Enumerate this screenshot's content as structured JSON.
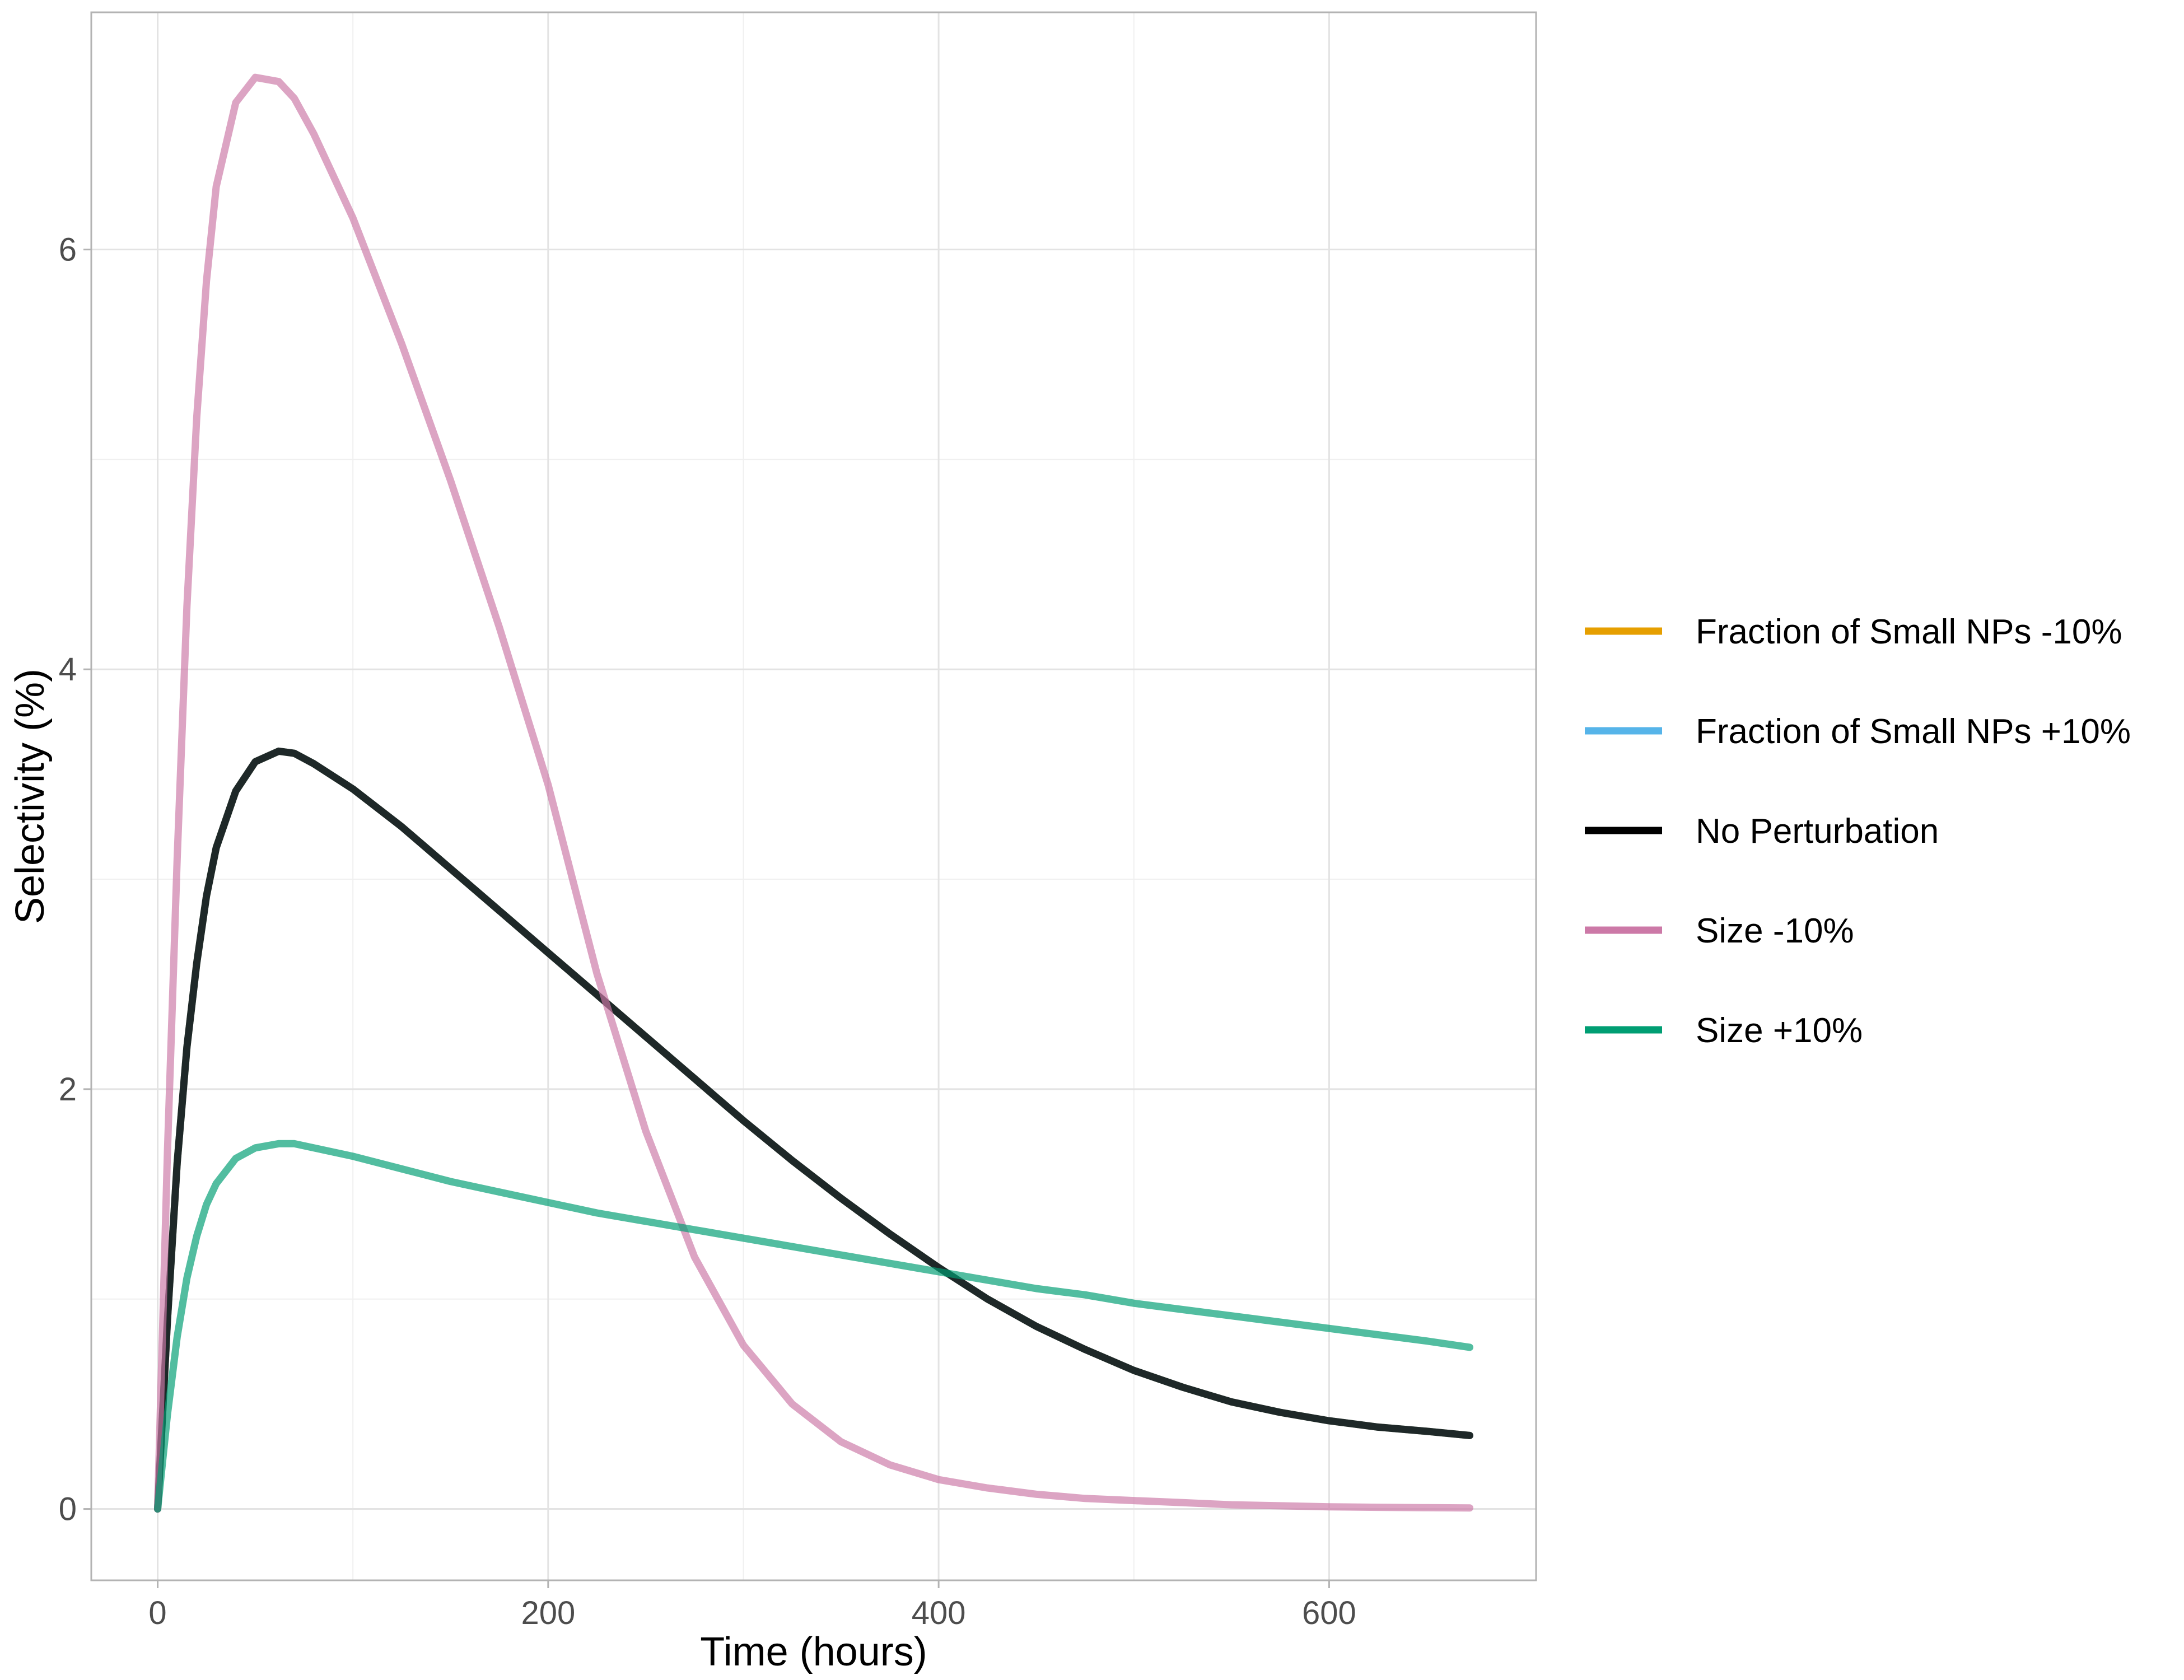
{
  "chart_data": {
    "type": "line",
    "title": "",
    "xlabel": "Time (hours)",
    "ylabel": "Selectivity (%)",
    "xlim": [
      -34,
      706
    ],
    "ylim": [
      -0.34,
      7.13
    ],
    "x_ticks": [
      0,
      200,
      400,
      600
    ],
    "x_tick_labels": [
      "0",
      "200",
      "400",
      "600"
    ],
    "y_ticks": [
      0,
      2,
      4,
      6
    ],
    "y_tick_labels": [
      "0",
      "2",
      "4",
      "6"
    ],
    "x_minor_ticks": [
      100,
      300,
      500
    ],
    "y_minor_ticks": [
      1,
      3,
      5
    ],
    "grid": true,
    "legend_position": "right",
    "x": [
      0,
      5,
      10,
      15,
      20,
      25,
      30,
      40,
      50,
      62,
      70,
      80,
      100,
      125,
      150,
      175,
      200,
      225,
      250,
      275,
      300,
      325,
      350,
      375,
      400,
      425,
      450,
      475,
      500,
      525,
      550,
      575,
      600,
      625,
      650,
      672
    ],
    "series": [
      {
        "name": "Fraction of Small NPs -10%",
        "color": "#E69F00",
        "values": [
          0,
          0.9,
          1.65,
          2.2,
          2.6,
          2.92,
          3.15,
          3.42,
          3.56,
          3.61,
          3.6,
          3.55,
          3.43,
          3.25,
          3.05,
          2.85,
          2.65,
          2.45,
          2.25,
          2.05,
          1.85,
          1.66,
          1.48,
          1.31,
          1.15,
          1.0,
          0.87,
          0.76,
          0.66,
          0.58,
          0.51,
          0.46,
          0.42,
          0.39,
          0.37,
          0.35
        ],
        "hidden_behind": "No Perturbation"
      },
      {
        "name": "Fraction of Small NPs +10%",
        "color": "#56B4E9",
        "values": [
          0,
          0.9,
          1.65,
          2.2,
          2.6,
          2.92,
          3.15,
          3.42,
          3.56,
          3.61,
          3.6,
          3.55,
          3.43,
          3.25,
          3.05,
          2.85,
          2.65,
          2.45,
          2.25,
          2.05,
          1.85,
          1.66,
          1.48,
          1.31,
          1.15,
          1.0,
          0.87,
          0.76,
          0.66,
          0.58,
          0.51,
          0.46,
          0.42,
          0.39,
          0.37,
          0.35
        ],
        "hidden_behind": "No Perturbation"
      },
      {
        "name": "No Perturbation",
        "color": "#000000",
        "values": [
          0,
          0.9,
          1.65,
          2.2,
          2.6,
          2.92,
          3.15,
          3.42,
          3.56,
          3.61,
          3.6,
          3.55,
          3.43,
          3.25,
          3.05,
          2.85,
          2.65,
          2.45,
          2.25,
          2.05,
          1.85,
          1.66,
          1.48,
          1.31,
          1.15,
          1.0,
          0.87,
          0.76,
          0.66,
          0.58,
          0.51,
          0.46,
          0.42,
          0.39,
          0.37,
          0.35
        ]
      },
      {
        "name": "Size -10%",
        "color": "#CC79A7",
        "values": [
          0,
          1.7,
          3.1,
          4.3,
          5.2,
          5.85,
          6.3,
          6.7,
          6.82,
          6.8,
          6.72,
          6.55,
          6.15,
          5.55,
          4.9,
          4.2,
          3.45,
          2.55,
          1.8,
          1.2,
          0.78,
          0.5,
          0.32,
          0.21,
          0.14,
          0.1,
          0.07,
          0.05,
          0.04,
          0.03,
          0.02,
          0.015,
          0.01,
          0.008,
          0.006,
          0.005
        ]
      },
      {
        "name": "Size +10%",
        "color": "#009E73",
        "values": [
          0,
          0.45,
          0.82,
          1.1,
          1.3,
          1.45,
          1.55,
          1.67,
          1.72,
          1.74,
          1.74,
          1.72,
          1.68,
          1.62,
          1.56,
          1.51,
          1.46,
          1.41,
          1.37,
          1.33,
          1.29,
          1.25,
          1.21,
          1.17,
          1.13,
          1.09,
          1.05,
          1.02,
          0.98,
          0.95,
          0.92,
          0.89,
          0.86,
          0.83,
          0.8,
          0.77
        ]
      }
    ]
  }
}
